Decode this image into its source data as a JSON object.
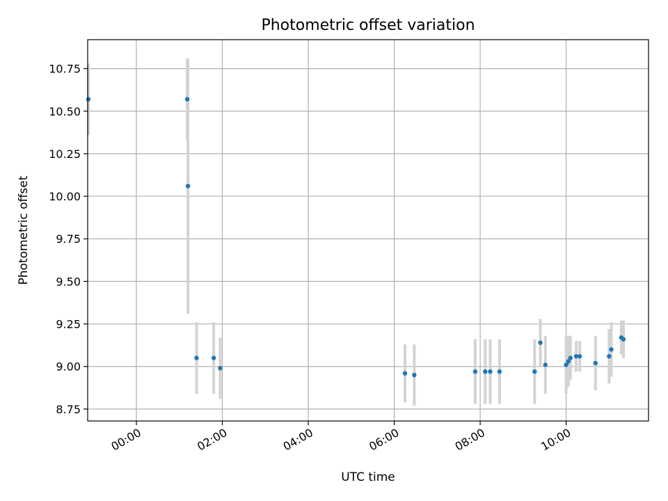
{
  "chart_data": {
    "type": "scatter",
    "title": "Photometric offset variation",
    "xlabel": "UTC time",
    "ylabel": "Photometric offset",
    "xlim": [
      "-01:08",
      "11:55"
    ],
    "ylim": [
      8.68,
      10.92
    ],
    "x_ticks": [
      "00:00",
      "02:00",
      "04:00",
      "06:00",
      "08:00",
      "10:00"
    ],
    "y_ticks": [
      "8.75",
      "9.00",
      "9.25",
      "9.50",
      "9.75",
      "10.00",
      "10.25",
      "10.50",
      "10.75"
    ],
    "grid": true,
    "point_color": "#1f77b4",
    "errorbar_color": "#d3d3d3",
    "points": [
      {
        "x": "-01:07",
        "y": 10.57,
        "err": 0.21
      },
      {
        "x": "01:11",
        "y": 10.57,
        "err": 0.24
      },
      {
        "x": "01:12",
        "y": 10.06,
        "err": 0.75
      },
      {
        "x": "01:24",
        "y": 9.05,
        "err": 0.21
      },
      {
        "x": "01:48",
        "y": 9.05,
        "err": 0.21
      },
      {
        "x": "01:57",
        "y": 8.99,
        "err": 0.18
      },
      {
        "x": "06:15",
        "y": 8.96,
        "err": 0.17
      },
      {
        "x": "06:28",
        "y": 8.95,
        "err": 0.18
      },
      {
        "x": "07:53",
        "y": 8.97,
        "err": 0.19
      },
      {
        "x": "08:07",
        "y": 8.97,
        "err": 0.19
      },
      {
        "x": "08:14",
        "y": 8.97,
        "err": 0.19
      },
      {
        "x": "08:27",
        "y": 8.97,
        "err": 0.19
      },
      {
        "x": "09:16",
        "y": 8.97,
        "err": 0.19
      },
      {
        "x": "09:24",
        "y": 9.14,
        "err": 0.14
      },
      {
        "x": "09:31",
        "y": 9.01,
        "err": 0.17
      },
      {
        "x": "10:00",
        "y": 9.01,
        "err": 0.17
      },
      {
        "x": "10:03",
        "y": 9.03,
        "err": 0.15
      },
      {
        "x": "10:06",
        "y": 9.05,
        "err": 0.13
      },
      {
        "x": "10:14",
        "y": 9.06,
        "err": 0.09
      },
      {
        "x": "10:19",
        "y": 9.06,
        "err": 0.09
      },
      {
        "x": "10:41",
        "y": 9.02,
        "err": 0.16
      },
      {
        "x": "11:00",
        "y": 9.06,
        "err": 0.16
      },
      {
        "x": "11:03",
        "y": 9.1,
        "err": 0.16
      },
      {
        "x": "11:17",
        "y": 9.17,
        "err": 0.1
      },
      {
        "x": "11:20",
        "y": 9.16,
        "err": 0.11
      }
    ]
  }
}
